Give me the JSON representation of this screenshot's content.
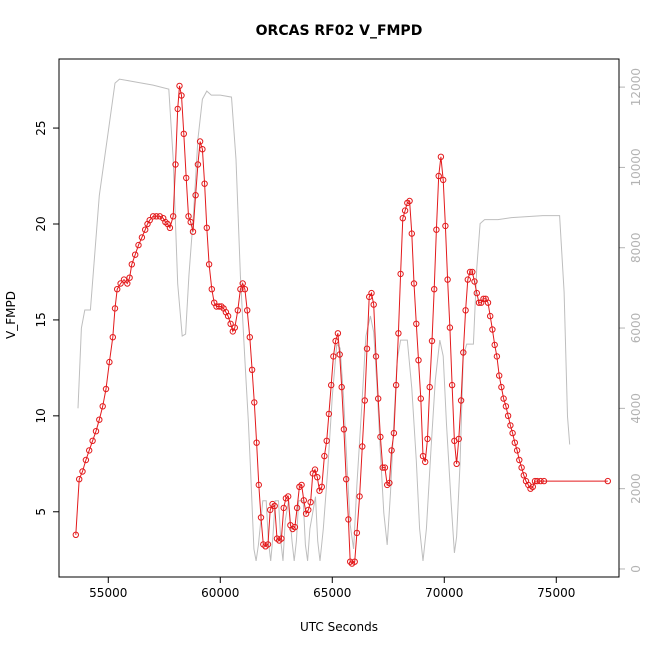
{
  "chart_data": {
    "type": "line",
    "title": "ORCAS RF02 V_FMPD",
    "xlabel": "UTC Seconds",
    "ylabel": "V_FMPD",
    "xlim": [
      52800,
      77800
    ],
    "ylim": [
      1.6,
      28.6
    ],
    "y2lim": [
      -200,
      12700
    ],
    "xticks": [
      55000,
      60000,
      65000,
      70000,
      75000
    ],
    "yticks": [
      5,
      10,
      15,
      20,
      25
    ],
    "y2ticks": [
      0,
      2000,
      4000,
      6000,
      8000,
      10000,
      12000
    ],
    "grid": false,
    "series": [
      {
        "role": "primary",
        "color": "#e31a1c",
        "style": "line+circle-markers",
        "points": [
          [
            53550,
            3.8
          ],
          [
            53700,
            6.7
          ],
          [
            53850,
            7.1
          ],
          [
            54000,
            7.7
          ],
          [
            54150,
            8.2
          ],
          [
            54300,
            8.7
          ],
          [
            54450,
            9.2
          ],
          [
            54600,
            9.8
          ],
          [
            54750,
            10.5
          ],
          [
            54900,
            11.4
          ],
          [
            55050,
            12.8
          ],
          [
            55200,
            14.1
          ],
          [
            55300,
            15.6
          ],
          [
            55400,
            16.6
          ],
          [
            55550,
            16.9
          ],
          [
            55700,
            17.1
          ],
          [
            55850,
            16.9
          ],
          [
            55950,
            17.2
          ],
          [
            56050,
            17.9
          ],
          [
            56200,
            18.4
          ],
          [
            56350,
            18.9
          ],
          [
            56500,
            19.3
          ],
          [
            56650,
            19.7
          ],
          [
            56750,
            20.0
          ],
          [
            56850,
            20.2
          ],
          [
            57000,
            20.4
          ],
          [
            57150,
            20.4
          ],
          [
            57300,
            20.4
          ],
          [
            57450,
            20.3
          ],
          [
            57550,
            20.1
          ],
          [
            57650,
            20.0
          ],
          [
            57750,
            19.8
          ],
          [
            57900,
            20.4
          ],
          [
            58000,
            23.1
          ],
          [
            58100,
            26.0
          ],
          [
            58180,
            27.2
          ],
          [
            58270,
            26.7
          ],
          [
            58370,
            24.7
          ],
          [
            58480,
            22.4
          ],
          [
            58580,
            20.4
          ],
          [
            58680,
            20.1
          ],
          [
            58780,
            19.6
          ],
          [
            58900,
            21.5
          ],
          [
            59000,
            23.1
          ],
          [
            59100,
            24.3
          ],
          [
            59200,
            23.9
          ],
          [
            59300,
            22.1
          ],
          [
            59400,
            19.8
          ],
          [
            59500,
            17.9
          ],
          [
            59620,
            16.6
          ],
          [
            59730,
            15.9
          ],
          [
            59830,
            15.7
          ],
          [
            59950,
            15.7
          ],
          [
            60050,
            15.7
          ],
          [
            60150,
            15.6
          ],
          [
            60250,
            15.4
          ],
          [
            60350,
            15.2
          ],
          [
            60460,
            14.8
          ],
          [
            60560,
            14.4
          ],
          [
            60650,
            14.6
          ],
          [
            60780,
            15.5
          ],
          [
            60900,
            16.6
          ],
          [
            61000,
            16.9
          ],
          [
            61100,
            16.6
          ],
          [
            61200,
            15.5
          ],
          [
            61320,
            14.1
          ],
          [
            61420,
            12.4
          ],
          [
            61520,
            10.7
          ],
          [
            61620,
            8.6
          ],
          [
            61720,
            6.4
          ],
          [
            61820,
            4.7
          ],
          [
            61920,
            3.3
          ],
          [
            62020,
            3.2
          ],
          [
            62130,
            3.3
          ],
          [
            62230,
            5.1
          ],
          [
            62330,
            5.4
          ],
          [
            62430,
            5.3
          ],
          [
            62530,
            3.6
          ],
          [
            62630,
            3.5
          ],
          [
            62730,
            3.6
          ],
          [
            62830,
            5.2
          ],
          [
            62930,
            5.7
          ],
          [
            63030,
            5.8
          ],
          [
            63130,
            4.3
          ],
          [
            63230,
            4.1
          ],
          [
            63330,
            4.2
          ],
          [
            63430,
            5.2
          ],
          [
            63530,
            6.3
          ],
          [
            63630,
            6.4
          ],
          [
            63730,
            5.6
          ],
          [
            63830,
            4.9
          ],
          [
            63930,
            5.1
          ],
          [
            64030,
            5.5
          ],
          [
            64130,
            7.0
          ],
          [
            64230,
            7.2
          ],
          [
            64330,
            6.8
          ],
          [
            64430,
            6.1
          ],
          [
            64530,
            6.3
          ],
          [
            64650,
            7.9
          ],
          [
            64750,
            8.7
          ],
          [
            64850,
            10.1
          ],
          [
            64950,
            11.6
          ],
          [
            65050,
            13.1
          ],
          [
            65150,
            13.9
          ],
          [
            65250,
            14.3
          ],
          [
            65330,
            13.2
          ],
          [
            65420,
            11.5
          ],
          [
            65520,
            9.3
          ],
          [
            65620,
            6.7
          ],
          [
            65720,
            4.6
          ],
          [
            65800,
            2.4
          ],
          [
            65880,
            2.3
          ],
          [
            66000,
            2.4
          ],
          [
            66100,
            3.9
          ],
          [
            66220,
            5.8
          ],
          [
            66340,
            8.4
          ],
          [
            66450,
            10.8
          ],
          [
            66550,
            13.5
          ],
          [
            66650,
            16.2
          ],
          [
            66750,
            16.4
          ],
          [
            66850,
            15.8
          ],
          [
            66950,
            13.1
          ],
          [
            67050,
            10.9
          ],
          [
            67150,
            8.9
          ],
          [
            67250,
            7.3
          ],
          [
            67350,
            7.3
          ],
          [
            67450,
            6.4
          ],
          [
            67550,
            6.5
          ],
          [
            67650,
            8.2
          ],
          [
            67750,
            9.1
          ],
          [
            67850,
            11.6
          ],
          [
            67950,
            14.3
          ],
          [
            68050,
            17.4
          ],
          [
            68150,
            20.3
          ],
          [
            68250,
            20.7
          ],
          [
            68350,
            21.1
          ],
          [
            68450,
            21.2
          ],
          [
            68550,
            19.5
          ],
          [
            68650,
            16.9
          ],
          [
            68750,
            14.8
          ],
          [
            68850,
            12.9
          ],
          [
            68950,
            10.9
          ],
          [
            69050,
            7.9
          ],
          [
            69150,
            7.6
          ],
          [
            69250,
            8.8
          ],
          [
            69350,
            11.5
          ],
          [
            69450,
            13.9
          ],
          [
            69550,
            16.6
          ],
          [
            69650,
            19.7
          ],
          [
            69750,
            22.5
          ],
          [
            69850,
            23.5
          ],
          [
            69950,
            22.3
          ],
          [
            70050,
            19.9
          ],
          [
            70150,
            17.1
          ],
          [
            70250,
            14.6
          ],
          [
            70350,
            11.6
          ],
          [
            70450,
            8.7
          ],
          [
            70550,
            7.5
          ],
          [
            70650,
            8.8
          ],
          [
            70750,
            10.8
          ],
          [
            70850,
            13.3
          ],
          [
            70950,
            15.5
          ],
          [
            71050,
            17.1
          ],
          [
            71150,
            17.5
          ],
          [
            71250,
            17.5
          ],
          [
            71350,
            17.0
          ],
          [
            71450,
            16.4
          ],
          [
            71550,
            15.9
          ],
          [
            71650,
            15.9
          ],
          [
            71750,
            16.1
          ],
          [
            71850,
            16.1
          ],
          [
            71950,
            15.9
          ],
          [
            72050,
            15.2
          ],
          [
            72150,
            14.5
          ],
          [
            72250,
            13.7
          ],
          [
            72350,
            13.1
          ],
          [
            72450,
            12.1
          ],
          [
            72550,
            11.5
          ],
          [
            72650,
            10.9
          ],
          [
            72750,
            10.5
          ],
          [
            72850,
            10.0
          ],
          [
            72950,
            9.5
          ],
          [
            73050,
            9.1
          ],
          [
            73150,
            8.6
          ],
          [
            73250,
            8.2
          ],
          [
            73350,
            7.7
          ],
          [
            73450,
            7.3
          ],
          [
            73550,
            6.9
          ],
          [
            73650,
            6.6
          ],
          [
            73750,
            6.4
          ],
          [
            73850,
            6.2
          ],
          [
            73950,
            6.3
          ],
          [
            74050,
            6.6
          ],
          [
            74150,
            6.6
          ],
          [
            74300,
            6.6
          ],
          [
            74450,
            6.6
          ],
          [
            77300,
            6.6
          ]
        ]
      },
      {
        "role": "secondary",
        "axis": "right",
        "color": "#bebebe",
        "style": "line",
        "points": [
          [
            53650,
            4000
          ],
          [
            53800,
            6000
          ],
          [
            53950,
            6450
          ],
          [
            54100,
            6450
          ],
          [
            54200,
            6450
          ],
          [
            54600,
            9300
          ],
          [
            55000,
            10900
          ],
          [
            55300,
            12100
          ],
          [
            55500,
            12200
          ],
          [
            56000,
            12150
          ],
          [
            57000,
            12050
          ],
          [
            57700,
            11950
          ],
          [
            57900,
            10200
          ],
          [
            58100,
            7100
          ],
          [
            58300,
            5800
          ],
          [
            58450,
            5850
          ],
          [
            58600,
            7300
          ],
          [
            58800,
            8800
          ],
          [
            59000,
            10700
          ],
          [
            59200,
            11700
          ],
          [
            59400,
            11900
          ],
          [
            59600,
            11800
          ],
          [
            60000,
            11800
          ],
          [
            60500,
            11750
          ],
          [
            60700,
            10200
          ],
          [
            60900,
            7300
          ],
          [
            61100,
            5200
          ],
          [
            61250,
            3700
          ],
          [
            61350,
            2500
          ],
          [
            61500,
            500
          ],
          [
            61600,
            200
          ],
          [
            61700,
            600
          ],
          [
            61900,
            1700
          ],
          [
            62050,
            1700
          ],
          [
            62150,
            700
          ],
          [
            62250,
            200
          ],
          [
            62350,
            800
          ],
          [
            62450,
            1700
          ],
          [
            62600,
            1700
          ],
          [
            62700,
            700
          ],
          [
            62800,
            200
          ],
          [
            62900,
            1200
          ],
          [
            63050,
            1700
          ],
          [
            63200,
            700
          ],
          [
            63300,
            200
          ],
          [
            63400,
            700
          ],
          [
            63500,
            1700
          ],
          [
            63700,
            1700
          ],
          [
            63800,
            600
          ],
          [
            63900,
            200
          ],
          [
            64000,
            1000
          ],
          [
            64250,
            1800
          ],
          [
            64350,
            700
          ],
          [
            64450,
            200
          ],
          [
            64600,
            1000
          ],
          [
            64800,
            2500
          ],
          [
            65000,
            4300
          ],
          [
            65200,
            5600
          ],
          [
            65350,
            5500
          ],
          [
            65500,
            4300
          ],
          [
            65650,
            2700
          ],
          [
            65800,
            1100
          ],
          [
            65950,
            500
          ],
          [
            66100,
            2100
          ],
          [
            66300,
            3900
          ],
          [
            66500,
            5800
          ],
          [
            66700,
            6300
          ],
          [
            66850,
            5900
          ],
          [
            67000,
            4500
          ],
          [
            67150,
            2900
          ],
          [
            67300,
            1400
          ],
          [
            67450,
            600
          ],
          [
            67600,
            1900
          ],
          [
            67750,
            3700
          ],
          [
            67900,
            5200
          ],
          [
            68050,
            5700
          ],
          [
            68350,
            5700
          ],
          [
            68550,
            4500
          ],
          [
            68750,
            2700
          ],
          [
            68900,
            1000
          ],
          [
            69050,
            200
          ],
          [
            69200,
            1000
          ],
          [
            69400,
            2900
          ],
          [
            69600,
            4700
          ],
          [
            69800,
            5700
          ],
          [
            69950,
            5300
          ],
          [
            70100,
            3600
          ],
          [
            70300,
            1700
          ],
          [
            70450,
            400
          ],
          [
            70550,
            800
          ],
          [
            70700,
            2600
          ],
          [
            70850,
            5300
          ],
          [
            71000,
            5600
          ],
          [
            71300,
            5600
          ],
          [
            71450,
            7500
          ],
          [
            71600,
            8600
          ],
          [
            71800,
            8700
          ],
          [
            72400,
            8700
          ],
          [
            73000,
            8750
          ],
          [
            74400,
            8800
          ],
          [
            74800,
            8800
          ],
          [
            75150,
            8800
          ],
          [
            75350,
            6900
          ],
          [
            75500,
            3800
          ],
          [
            75600,
            3100
          ]
        ]
      }
    ]
  }
}
